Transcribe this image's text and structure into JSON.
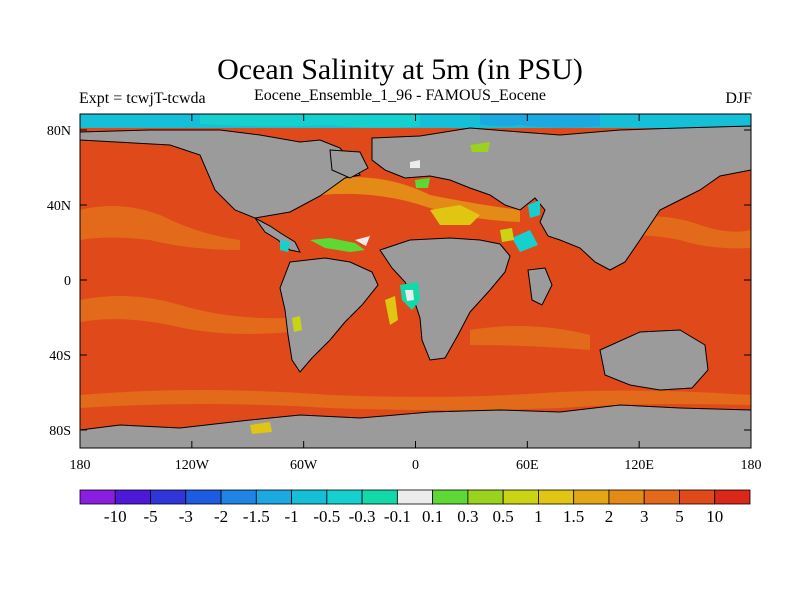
{
  "header": {
    "title": "Ocean Salinity at 5m (in PSU)",
    "experiment": "Expt = tcwjT-tcwda",
    "ensemble": "Eocene_Ensemble_1_96 - FAMOUS_Eocene",
    "season": "DJF"
  },
  "map": {
    "projection": "cylindrical equidistant",
    "land_color": "#9b9b9b",
    "x_ticks": [
      "180",
      "120W",
      "60W",
      "0",
      "60E",
      "120E",
      "180"
    ],
    "y_ticks": [
      "80N",
      "40N",
      "0",
      "40S",
      "80S"
    ]
  },
  "colorbar": {
    "colors": [
      "#8a1ee0",
      "#4d18d8",
      "#2f35d8",
      "#1d5be0",
      "#1f84e3",
      "#1ca8e0",
      "#15bfd7",
      "#16d0d0",
      "#12d9a8",
      "#ececec",
      "#5ed835",
      "#9bd21d",
      "#cad414",
      "#e0c513",
      "#e4a614",
      "#e48a16",
      "#e36a1b",
      "#e04a1a",
      "#d9281a"
    ],
    "labels": [
      "-10",
      "-5",
      "-3",
      "-2",
      "-1.5",
      "-1",
      "-0.5",
      "-0.3",
      "-0.1",
      "0.1",
      "0.3",
      "0.5",
      "1",
      "1.5",
      "2",
      "3",
      "5",
      "10"
    ]
  }
}
